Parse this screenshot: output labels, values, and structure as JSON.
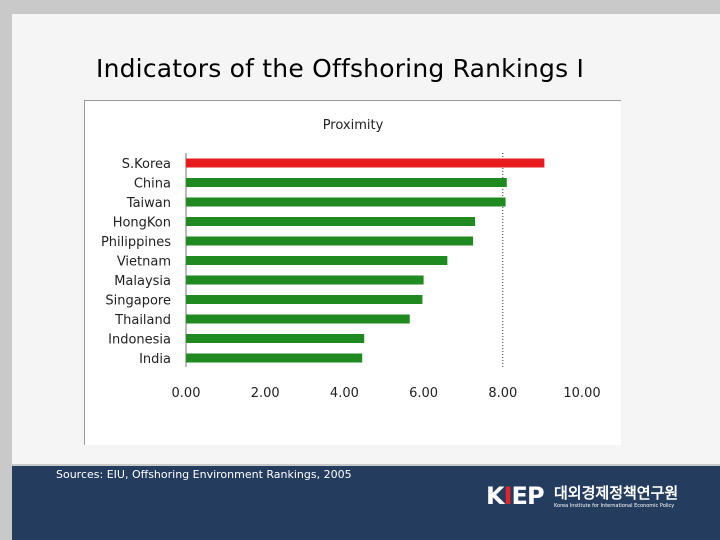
{
  "slide": {
    "title": "Indicators of the Offshoring Rankings Ⅰ",
    "sources": "Sources: EIU, Offshoring Environment Rankings, 2005"
  },
  "logo": {
    "mark": "KIEP",
    "name_ko": "대외경제정책연구원",
    "name_en": "Korea Institute for International Economic Policy"
  },
  "colors": {
    "highlight_bar": "#e81c1c",
    "bar": "#1f8a1f",
    "footer": "#243c5e"
  },
  "chart_data": {
    "type": "bar",
    "orientation": "horizontal",
    "title": "Proximity",
    "categories": [
      "S.Korea",
      "China",
      "Taiwan",
      "HongKon",
      "Philippines",
      "Vietnam",
      "Malaysia",
      "Singapore",
      "Thailand",
      "Indonesia",
      "India"
    ],
    "values": [
      9.05,
      8.1,
      8.07,
      7.3,
      7.25,
      6.6,
      6.0,
      5.97,
      5.65,
      4.5,
      4.45
    ],
    "highlight": "S.Korea",
    "xlim": [
      0,
      10
    ],
    "xticks": [
      "0.00",
      "2.00",
      "4.00",
      "6.00",
      "8.00",
      "10.00"
    ],
    "reference_line": 8.0,
    "xlabel": "",
    "ylabel": "",
    "grid": false
  }
}
